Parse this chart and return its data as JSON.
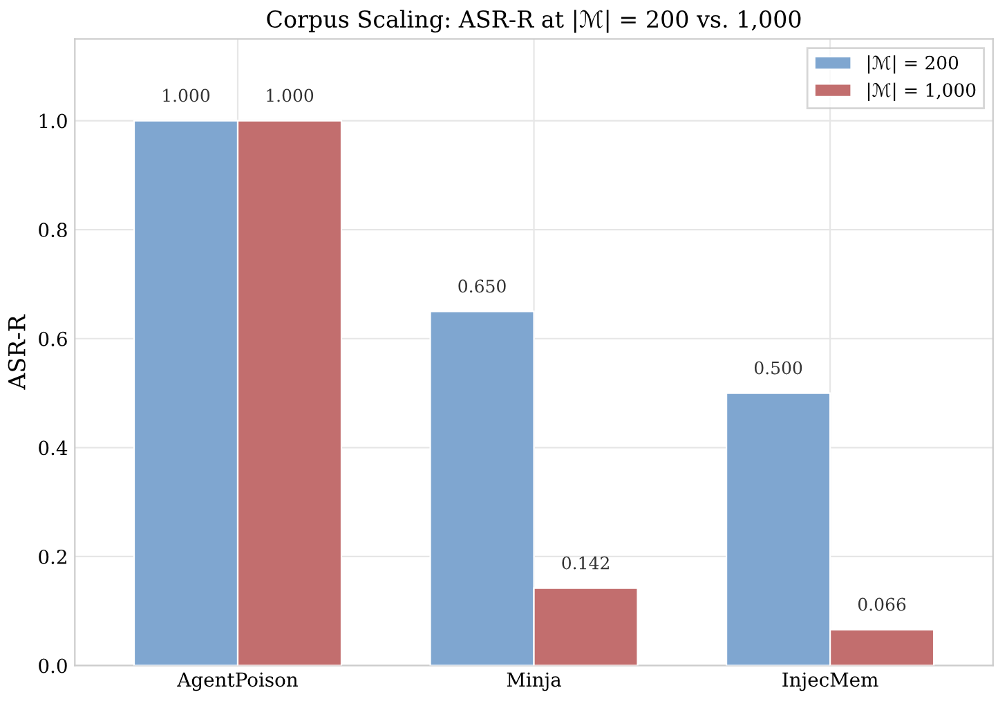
{
  "chart_data": {
    "type": "bar",
    "title": "Corpus Scaling: ASR-R at |ℳ| = 200 vs. 1,000",
    "ylabel": "ASR-R",
    "categories": [
      "AgentPoison",
      "Minja",
      "InjecMem"
    ],
    "series": [
      {
        "name": "|ℳ| = 200",
        "color": "#7fa6d0",
        "values": [
          1.0,
          0.65,
          0.5
        ],
        "value_labels": [
          "1.000",
          "0.650",
          "0.500"
        ]
      },
      {
        "name": "|ℳ| = 1,000",
        "color": "#c26e6e",
        "values": [
          1.0,
          0.142,
          0.066
        ],
        "value_labels": [
          "1.000",
          "0.142",
          "0.066"
        ]
      }
    ],
    "ylim": [
      0,
      1.15
    ],
    "yticks": [
      {
        "value": 0,
        "label": "0.0"
      },
      0.2,
      0.4,
      0.6,
      0.8,
      {
        "value": 1,
        "label": "1.0"
      }
    ],
    "grid": true,
    "legend": "top right"
  }
}
